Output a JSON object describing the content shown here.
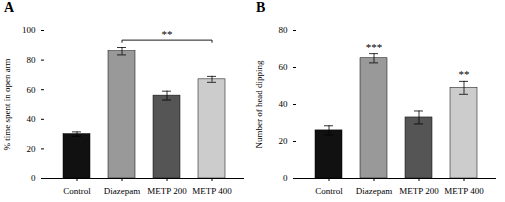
{
  "chart_data": [
    {
      "type": "bar",
      "title": "A",
      "categories": [
        "Control",
        "Diazepam",
        "METP 200",
        "METP 400"
      ],
      "values": [
        30,
        86,
        56,
        67
      ],
      "errors": [
        1.5,
        2.5,
        3.0,
        2.0
      ],
      "colors": [
        "#111111",
        "#999999",
        "#555555",
        "#cccccc"
      ],
      "ylabel": "% time spent in open arm",
      "ylim": [
        0,
        100
      ],
      "yticks": [
        0,
        20,
        40,
        60,
        80,
        100
      ],
      "annotations": [
        {
          "label": "**",
          "x1": "Diazepam",
          "x2": "METP 400",
          "y": 92
        }
      ]
    },
    {
      "type": "bar",
      "title": "B",
      "categories": [
        "Control",
        "Diazepam",
        "METP 200",
        "METP 400"
      ],
      "values": [
        26,
        65,
        33,
        49
      ],
      "errors": [
        2.5,
        2.5,
        3.5,
        3.5
      ],
      "colors": [
        "#111111",
        "#999999",
        "#555555",
        "#cccccc"
      ],
      "ylabel": "Number of head dipping",
      "ylim": [
        0,
        80
      ],
      "yticks": [
        0,
        20,
        40,
        60,
        80
      ],
      "annotations": [
        {
          "label": "***",
          "category": "Diazepam"
        },
        {
          "label": "**",
          "category": "METP 400"
        }
      ]
    }
  ]
}
